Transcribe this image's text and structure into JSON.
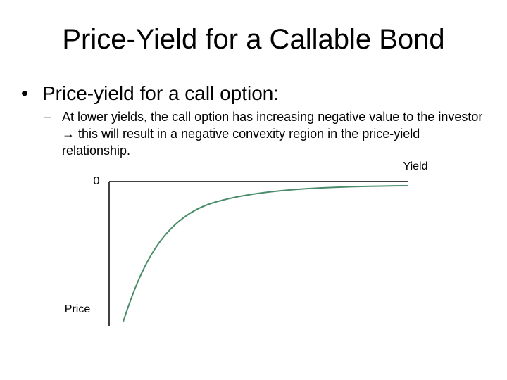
{
  "slide": {
    "title": "Price-Yield for a Callable Bond",
    "bullet": "Price-yield for a call option:",
    "sub_bullet": "At lower yields, the call option has increasing negative value to the investor → this will result in a negative convexity region in the price-yield relationship.",
    "figure": {
      "origin_label": "0",
      "x_label": "Yield",
      "y_label": "Price"
    }
  }
}
